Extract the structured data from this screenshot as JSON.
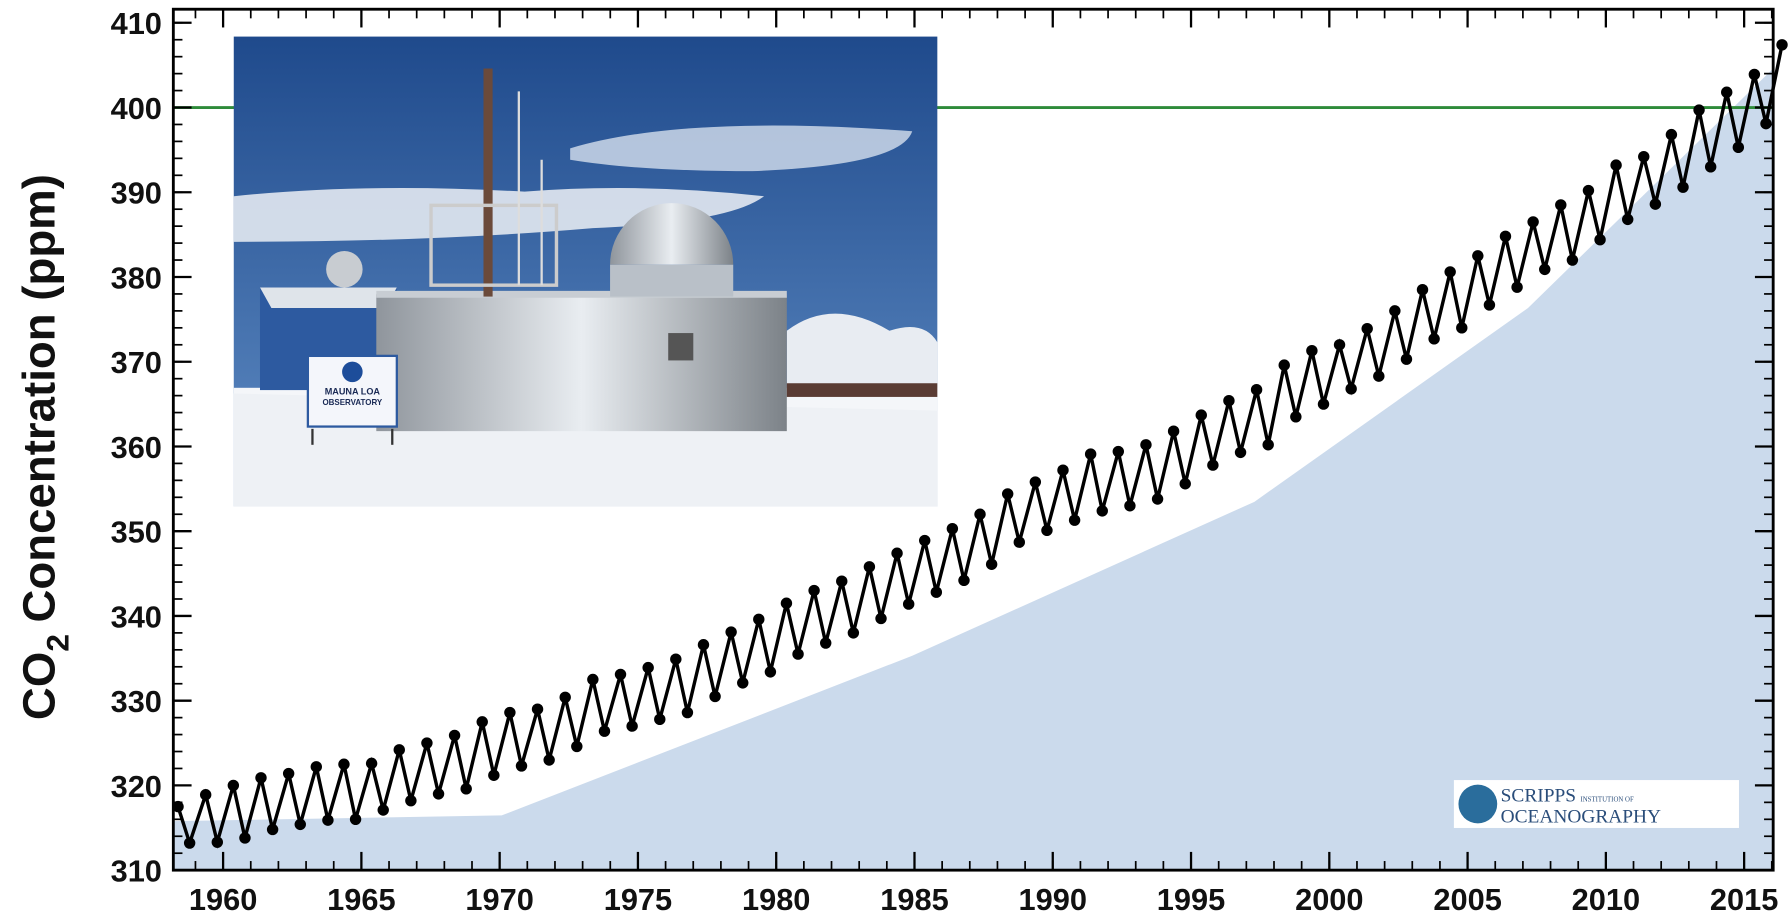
{
  "chart_data": {
    "type": "scatter",
    "y_label": [
      "CO",
      "2",
      "Concentration (ppm)"
    ],
    "xlim": [
      1958.2,
      2016.05
    ],
    "ylim": [
      310,
      411.6
    ],
    "xticks": [
      1960,
      1965,
      1970,
      1975,
      1980,
      1985,
      1990,
      1995,
      2000,
      2005,
      2010,
      2015
    ],
    "yticks": [
      310,
      320,
      330,
      340,
      350,
      360,
      370,
      380,
      390,
      400,
      410
    ],
    "x_minor_step": 1,
    "y_minor_step": 2,
    "reference_line": {
      "value": 400,
      "color": "#2e8b3a"
    },
    "series": [
      {
        "color": "#000000",
        "x": [
          1958.37,
          1958.79,
          1959.37,
          1959.79,
          1960.37,
          1960.79,
          1961.37,
          1961.79,
          1962.37,
          1962.79,
          1963.37,
          1963.79,
          1964.37,
          1964.79,
          1965.37,
          1965.79,
          1966.37,
          1966.79,
          1967.37,
          1967.79,
          1968.37,
          1968.79,
          1969.37,
          1969.79,
          1970.37,
          1970.79,
          1971.37,
          1971.79,
          1972.37,
          1972.79,
          1973.37,
          1973.79,
          1974.37,
          1974.79,
          1975.37,
          1975.79,
          1976.37,
          1976.79,
          1977.37,
          1977.79,
          1978.37,
          1978.79,
          1979.37,
          1979.79,
          1980.37,
          1980.79,
          1981.37,
          1981.79,
          1982.37,
          1982.79,
          1983.37,
          1983.79,
          1984.37,
          1984.79,
          1985.37,
          1985.79,
          1986.37,
          1986.79,
          1987.37,
          1987.79,
          1988.37,
          1988.79,
          1989.37,
          1989.79,
          1990.37,
          1990.79,
          1991.37,
          1991.79,
          1992.37,
          1992.79,
          1993.37,
          1993.79,
          1994.37,
          1994.79,
          1995.37,
          1995.79,
          1996.37,
          1996.79,
          1997.37,
          1997.79,
          1998.37,
          1998.79,
          1999.37,
          1999.79,
          2000.37,
          2000.79,
          2001.37,
          2001.79,
          2002.37,
          2002.79,
          2003.37,
          2003.79,
          2004.37,
          2004.79,
          2005.37,
          2005.79,
          2006.37,
          2006.79,
          2007.37,
          2007.79,
          2008.37,
          2008.79,
          2009.37,
          2009.79,
          2010.37,
          2010.79,
          2011.37,
          2011.79,
          2012.37,
          2012.79,
          2013.37,
          2013.79,
          2014.37,
          2014.79,
          2015.37,
          2015.79,
          2016.37
        ],
        "values": [
          317.5,
          313.2,
          318.9,
          313.3,
          320.0,
          313.8,
          320.9,
          314.8,
          321.4,
          315.4,
          322.2,
          315.9,
          322.5,
          316.0,
          322.6,
          317.1,
          324.2,
          318.2,
          325.0,
          319.0,
          325.9,
          319.6,
          327.5,
          321.2,
          328.6,
          322.3,
          329.0,
          323.0,
          330.4,
          324.6,
          332.5,
          326.4,
          333.1,
          327.0,
          333.9,
          327.8,
          334.9,
          328.6,
          336.6,
          330.5,
          338.1,
          332.1,
          339.6,
          333.4,
          341.5,
          335.5,
          343.0,
          336.8,
          344.1,
          338.0,
          345.8,
          339.7,
          347.4,
          341.4,
          348.9,
          342.8,
          350.3,
          344.2,
          352.0,
          346.1,
          354.4,
          348.7,
          355.8,
          350.1,
          357.2,
          351.3,
          359.1,
          352.4,
          359.4,
          353.0,
          360.2,
          353.8,
          361.8,
          355.6,
          363.7,
          357.8,
          365.4,
          359.3,
          366.7,
          360.2,
          369.6,
          363.5,
          371.3,
          365.0,
          372.0,
          366.8,
          373.9,
          368.3,
          376.0,
          370.3,
          378.5,
          372.7,
          380.6,
          374.0,
          382.5,
          376.7,
          384.8,
          378.8,
          386.5,
          380.9,
          388.5,
          382.0,
          390.2,
          384.4,
          393.2,
          386.8,
          394.2,
          388.6,
          396.8,
          390.6,
          399.7,
          393.0,
          401.8,
          395.3,
          403.9,
          398.1,
          407.4
        ]
      }
    ]
  },
  "inset": {
    "sign": [
      "MAUNA LOA",
      "OBSERVATORY"
    ]
  },
  "logo": {
    "line1": "SCRIPPS",
    "small": "INSTITUTION OF",
    "line2": "OCEANOGRAPHY"
  }
}
